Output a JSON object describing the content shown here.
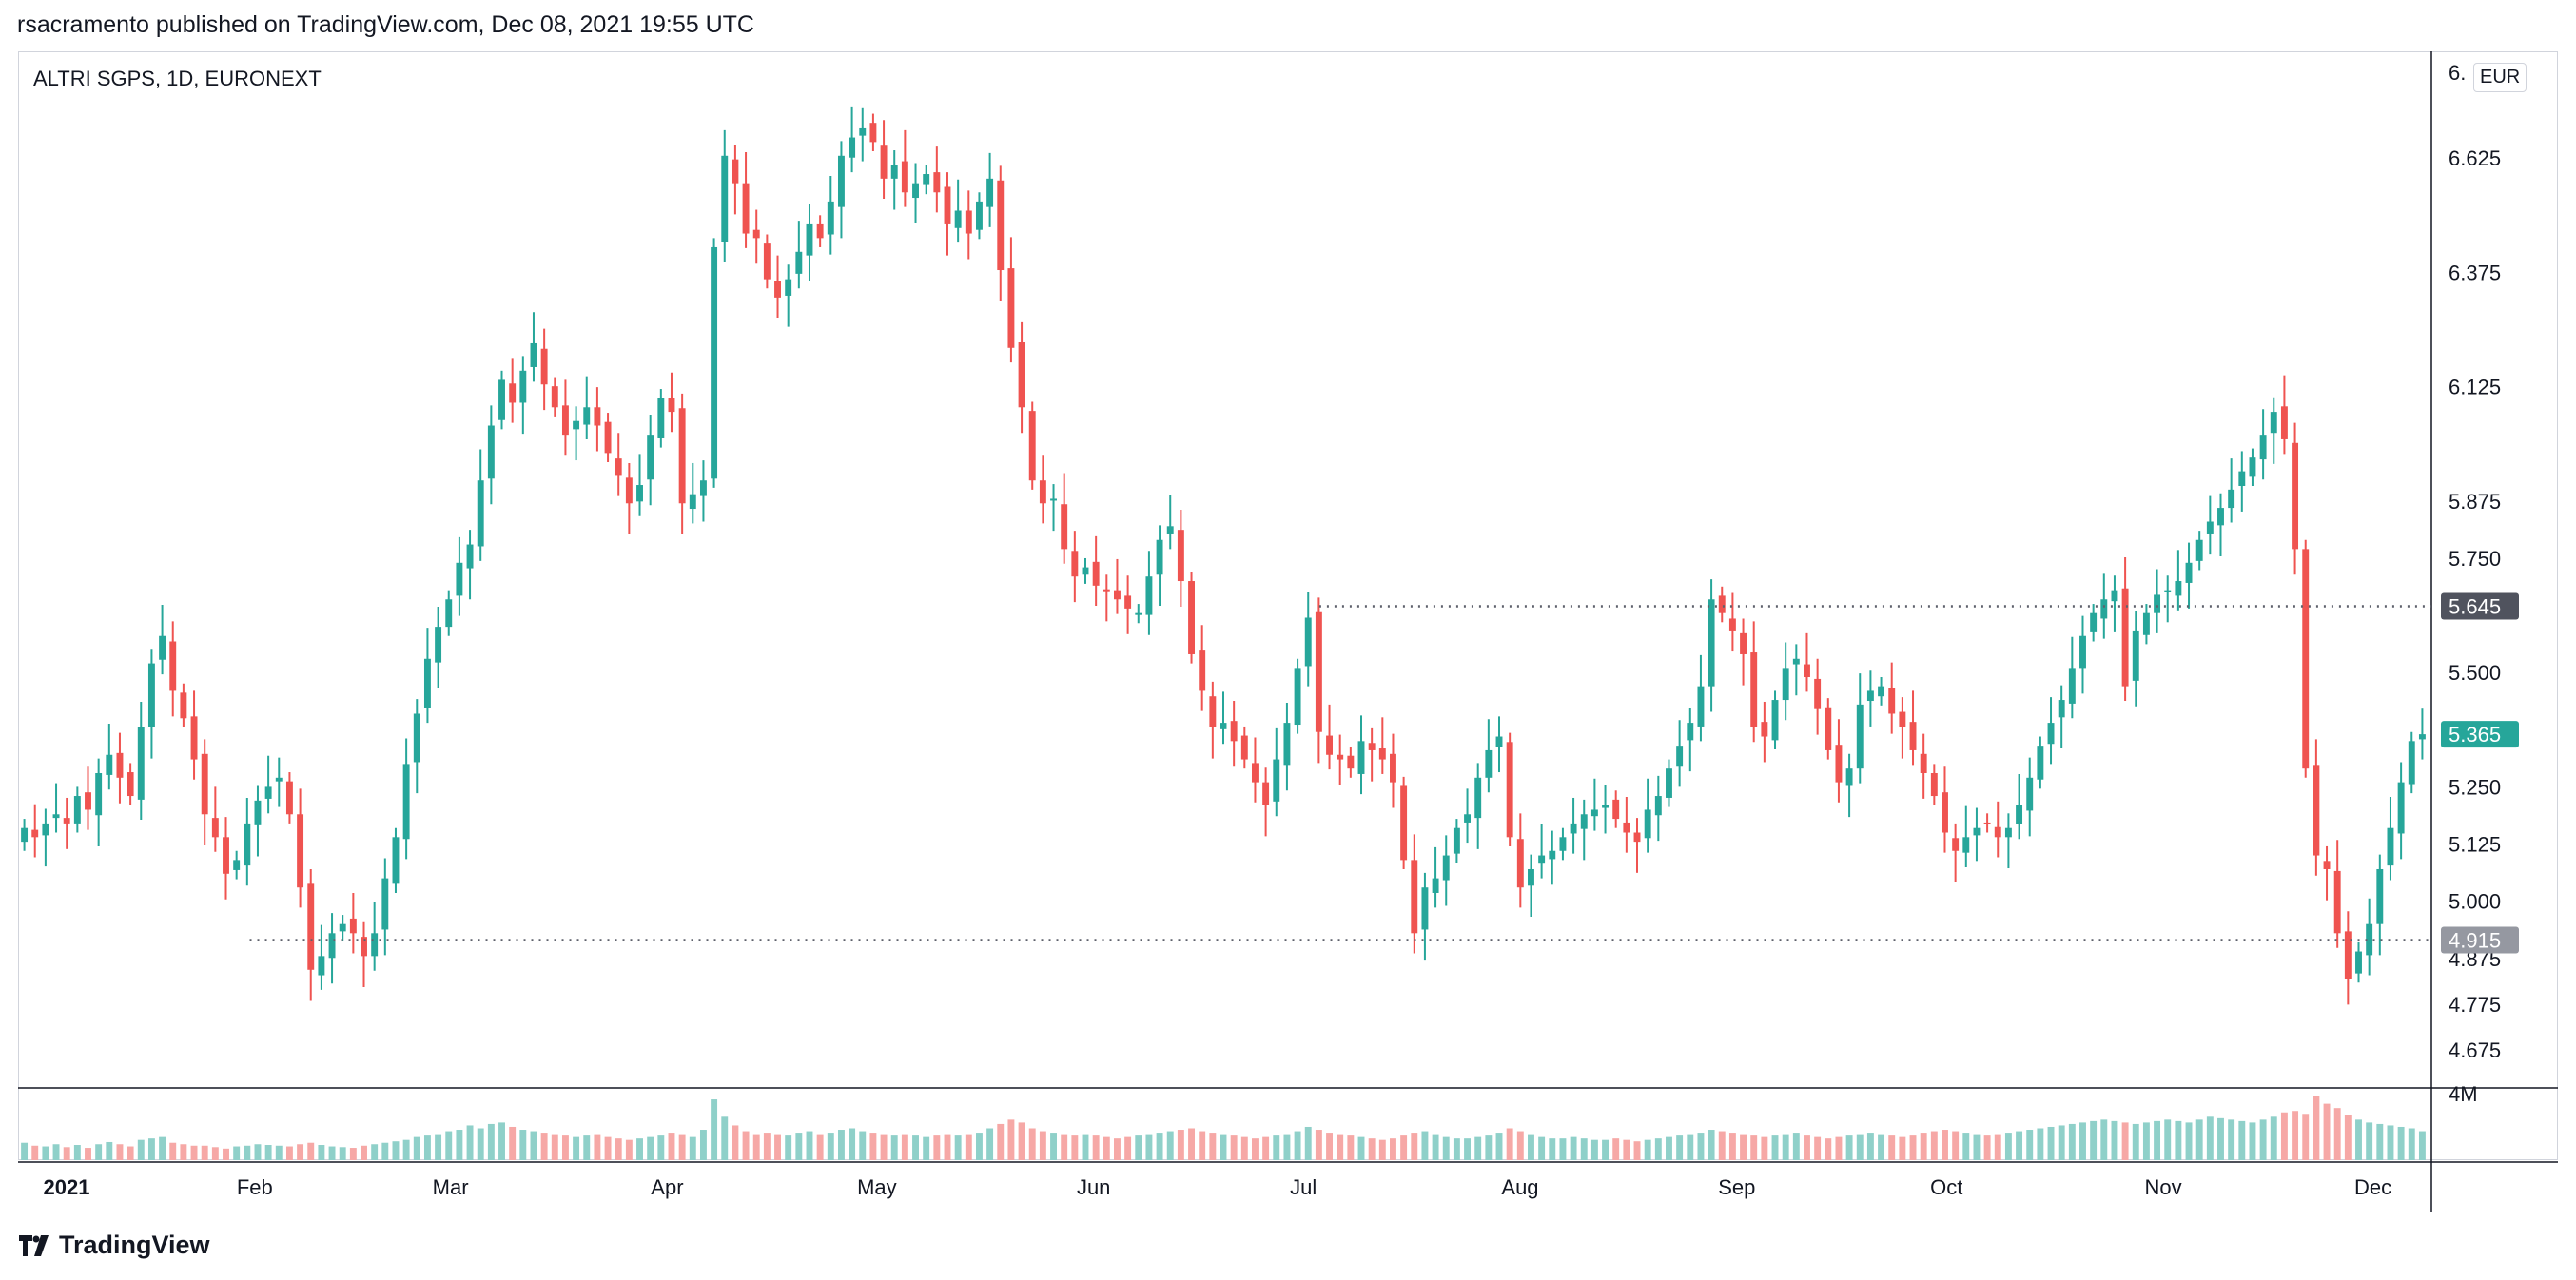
{
  "header": {
    "text": "rsacramento published on TradingView.com, Dec 08, 2021 19:55 UTC"
  },
  "chart_title": "ALTRI SGPS, 1D, EURONEXT",
  "currency": "EUR",
  "brand": "TradingView",
  "colors": {
    "up": "#26a69a",
    "down": "#ef5350",
    "vol_up": "#8fd0c9",
    "vol_down": "#f6a8a6",
    "axis": "#131722"
  },
  "chart_data": {
    "type": "candlestick",
    "title": "ALTRI SGPS, 1D, EURONEXT",
    "ylim": [
      4.6,
      6.85
    ],
    "y_ticks": [
      "6.625",
      "6.375",
      "6.125",
      "5.875",
      "5.750",
      "5.500",
      "5.250",
      "5.125",
      "5.000",
      "4.875",
      "4.775",
      "4.675"
    ],
    "y_tick_partial": "6.",
    "x_ticks": [
      "2021",
      "Feb",
      "Mar",
      "Apr",
      "May",
      "Jun",
      "Jul",
      "Aug",
      "Sep",
      "Oct",
      "Nov",
      "Dec"
    ],
    "volume_tick": "4M",
    "volume_max": 4400000,
    "price_labels": [
      {
        "value": 5.645,
        "text": "5.645",
        "style": "dark"
      },
      {
        "value": 5.365,
        "text": "5.365",
        "style": "last"
      },
      {
        "value": 4.915,
        "text": "4.915",
        "style": "gray"
      }
    ],
    "horizontal_lines": [
      {
        "value": 5.645,
        "from_date": "2021-07-06",
        "style": "dotted"
      },
      {
        "value": 4.915,
        "from_date": "2021-02-03",
        "style": "dotted"
      }
    ],
    "start_date": "2021-01-01",
    "end_date": "2021-12-08",
    "closes": [
      5.16,
      5.14,
      5.17,
      5.19,
      5.17,
      5.23,
      5.2,
      5.28,
      5.32,
      5.27,
      5.23,
      5.38,
      5.52,
      5.58,
      5.46,
      5.4,
      5.31,
      5.19,
      5.14,
      5.06,
      5.09,
      5.17,
      5.22,
      5.25,
      5.27,
      5.19,
      5.03,
      4.85,
      4.88,
      4.93,
      4.95,
      4.93,
      4.88,
      4.93,
      5.05,
      5.14,
      5.3,
      5.41,
      5.53,
      5.6,
      5.66,
      5.74,
      5.78,
      5.92,
      6.04,
      6.14,
      6.09,
      6.16,
      6.22,
      6.13,
      6.08,
      6.02,
      6.05,
      6.08,
      6.04,
      5.98,
      5.93,
      5.87,
      5.91,
      6.02,
      6.1,
      6.07,
      5.87,
      5.89,
      5.92,
      6.43,
      6.63,
      6.57,
      6.46,
      6.45,
      6.36,
      6.32,
      6.36,
      6.42,
      6.48,
      6.45,
      6.53,
      6.63,
      6.67,
      6.69,
      6.66,
      6.58,
      6.61,
      6.55,
      6.57,
      6.59,
      6.55,
      6.48,
      6.51,
      6.46,
      6.53,
      6.58,
      6.38,
      6.21,
      6.08,
      5.92,
      5.87,
      5.88,
      5.77,
      5.71,
      5.73,
      5.69,
      5.68,
      5.66,
      5.64,
      5.63,
      5.71,
      5.79,
      5.82,
      5.7,
      5.54,
      5.46,
      5.38,
      5.39,
      5.35,
      5.31,
      5.26,
      5.21,
      5.31,
      5.39,
      5.51,
      5.62,
      5.37,
      5.32,
      5.31,
      5.29,
      5.35,
      5.33,
      5.31,
      5.26,
      5.09,
      4.93,
      5.03,
      5.05,
      5.1,
      5.16,
      5.19,
      5.27,
      5.33,
      5.36,
      5.14,
      5.03,
      5.07,
      5.1,
      5.11,
      5.14,
      5.17,
      5.19,
      5.2,
      5.21,
      5.18,
      5.15,
      5.13,
      5.2,
      5.23,
      5.29,
      5.34,
      5.39,
      5.47,
      5.66,
      5.63,
      5.59,
      5.54,
      5.38,
      5.36,
      5.44,
      5.51,
      5.53,
      5.49,
      5.42,
      5.33,
      5.26,
      5.29,
      5.43,
      5.46,
      5.47,
      5.41,
      5.38,
      5.33,
      5.28,
      5.23,
      5.15,
      5.11,
      5.14,
      5.16,
      5.17,
      5.14,
      5.16,
      5.21,
      5.27,
      5.34,
      5.39,
      5.44,
      5.51,
      5.58,
      5.63,
      5.66,
      5.68,
      5.47,
      5.59,
      5.63,
      5.67,
      5.68,
      5.7,
      5.74,
      5.79,
      5.83,
      5.86,
      5.9,
      5.94,
      5.97,
      6.02,
      6.07,
      6.01,
      5.77,
      5.29,
      5.1,
      5.07,
      4.93,
      4.83,
      4.89,
      4.95,
      5.07,
      5.16,
      5.26,
      5.35,
      5.365
    ],
    "volumes": [
      1.2,
      1.0,
      0.95,
      1.1,
      0.9,
      1.05,
      0.85,
      1.1,
      1.25,
      1.1,
      0.95,
      1.4,
      1.5,
      1.6,
      1.2,
      1.1,
      1.0,
      1.0,
      0.9,
      0.8,
      0.95,
      1.0,
      1.1,
      1.05,
      1.0,
      0.95,
      1.1,
      1.2,
      1.05,
      0.95,
      0.9,
      0.85,
      1.0,
      1.1,
      1.2,
      1.3,
      1.4,
      1.6,
      1.7,
      1.8,
      2.0,
      2.1,
      2.4,
      2.2,
      2.5,
      2.6,
      2.3,
      2.1,
      2.0,
      1.9,
      1.8,
      1.7,
      1.6,
      1.7,
      1.8,
      1.6,
      1.5,
      1.4,
      1.5,
      1.6,
      1.7,
      1.9,
      1.8,
      1.6,
      2.1,
      4.2,
      3.0,
      2.4,
      2.0,
      1.8,
      1.9,
      1.8,
      1.7,
      1.9,
      2.0,
      1.8,
      1.9,
      2.1,
      2.2,
      2.0,
      1.9,
      1.8,
      1.7,
      1.8,
      1.7,
      1.6,
      1.7,
      1.8,
      1.7,
      1.8,
      1.9,
      2.2,
      2.5,
      2.8,
      2.6,
      2.2,
      2.0,
      1.9,
      1.8,
      1.7,
      1.8,
      1.7,
      1.6,
      1.5,
      1.6,
      1.7,
      1.8,
      1.9,
      2.0,
      2.1,
      2.2,
      2.0,
      1.9,
      1.8,
      1.7,
      1.6,
      1.5,
      1.6,
      1.7,
      1.8,
      2.0,
      2.3,
      2.1,
      1.9,
      1.8,
      1.7,
      1.6,
      1.5,
      1.4,
      1.5,
      1.7,
      1.9,
      2.0,
      1.8,
      1.6,
      1.5,
      1.5,
      1.6,
      1.7,
      1.9,
      2.2,
      2.0,
      1.8,
      1.6,
      1.5,
      1.5,
      1.6,
      1.5,
      1.4,
      1.4,
      1.5,
      1.4,
      1.3,
      1.4,
      1.5,
      1.6,
      1.7,
      1.8,
      1.9,
      2.1,
      2.0,
      1.9,
      1.8,
      1.7,
      1.6,
      1.7,
      1.8,
      1.9,
      1.7,
      1.6,
      1.5,
      1.6,
      1.7,
      1.8,
      1.9,
      1.8,
      1.7,
      1.6,
      1.7,
      1.9,
      2.0,
      2.1,
      2.0,
      1.9,
      1.8,
      1.7,
      1.8,
      1.9,
      2.0,
      2.1,
      2.2,
      2.3,
      2.4,
      2.5,
      2.6,
      2.7,
      2.8,
      2.7,
      2.6,
      2.5,
      2.6,
      2.7,
      2.8,
      2.7,
      2.6,
      2.8,
      3.0,
      2.9,
      2.8,
      2.7,
      2.6,
      2.8,
      3.0,
      3.3,
      3.4,
      3.2,
      4.4,
      3.9,
      3.6,
      3.1,
      2.8,
      2.6,
      2.5,
      2.4,
      2.3,
      2.2,
      2.0,
      1.9,
      1.8,
      1.7
    ]
  }
}
